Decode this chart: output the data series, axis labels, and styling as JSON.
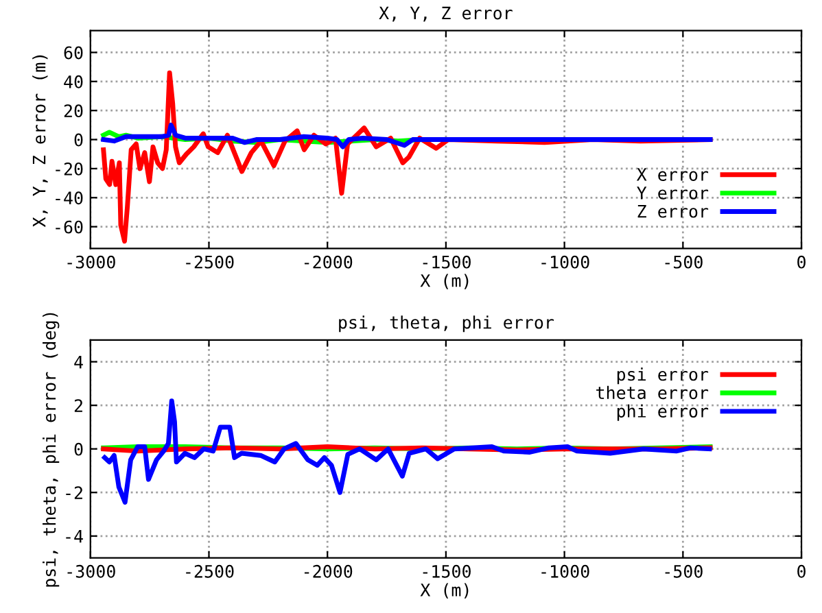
{
  "chart_data": [
    {
      "type": "line",
      "title": "X, Y, Z error",
      "xlabel": "X (m)",
      "ylabel": "X, Y, Z error (m)",
      "xlim": [
        -3000,
        0
      ],
      "xticks": [
        -3000,
        -2500,
        -2000,
        -1500,
        -1000,
        -500,
        0
      ],
      "ylim": [
        -75,
        75
      ],
      "yticks": [
        -60,
        -40,
        -20,
        0,
        20,
        40,
        60
      ],
      "grid": true,
      "legend": "bottom right",
      "line_style": "solid",
      "marker": "none",
      "series": [
        {
          "name": "X error",
          "color": "#ff0000",
          "x": [
            -2945,
            -2935,
            -2919,
            -2909,
            -2893,
            -2878,
            -2872,
            -2856,
            -2844,
            -2828,
            -2807,
            -2791,
            -2771,
            -2751,
            -2736,
            -2716,
            -2696,
            -2680,
            -2666,
            -2653,
            -2641,
            -2625,
            -2595,
            -2564,
            -2524,
            -2503,
            -2463,
            -2422,
            -2361,
            -2321,
            -2280,
            -2226,
            -2179,
            -2128,
            -2098,
            -2057,
            -2007,
            -1966,
            -1940,
            -1915,
            -1845,
            -1794,
            -1733,
            -1682,
            -1656,
            -1611,
            -1541,
            -1490,
            -1287,
            -1084,
            -881,
            -679,
            -385
          ],
          "values": [
            -7,
            -27,
            -31,
            -15,
            -31,
            -16,
            -59,
            -70,
            -46,
            -7,
            -3,
            -20,
            -9,
            -29,
            -5,
            -16,
            -20,
            -7,
            46,
            25,
            -5,
            -16,
            -10,
            -5,
            4,
            -5,
            -9,
            3,
            -22,
            -9,
            -1,
            -18,
            -1,
            6,
            -7,
            3,
            -3,
            1,
            -37,
            -3,
            8,
            -5,
            1,
            -16,
            -12,
            1,
            -6,
            0,
            -1,
            -2,
            0,
            -1,
            0
          ]
        },
        {
          "name": "Y error",
          "color": "#00ff00",
          "x": [
            -2945,
            -2920,
            -2880,
            -2850,
            -2800,
            -2700,
            -2600,
            -2500,
            -2400,
            -2300,
            -2200,
            -2100,
            -2000,
            -1900,
            -1800,
            -1700,
            -1600,
            -1500
          ],
          "values": [
            3,
            5,
            2,
            3,
            1,
            2,
            0,
            1,
            -1,
            -2,
            0,
            -1,
            -2,
            -1,
            0,
            -1,
            0,
            0
          ]
        },
        {
          "name": "Z error",
          "color": "#0000ff",
          "x": [
            -2945,
            -2900,
            -2850,
            -2800,
            -2700,
            -2670,
            -2660,
            -2640,
            -2600,
            -2500,
            -2400,
            -2350,
            -2300,
            -2200,
            -2100,
            -2000,
            -1960,
            -1935,
            -1910,
            -1850,
            -1750,
            -1675,
            -1640,
            -1500,
            -1300,
            -1000,
            -700,
            -385
          ],
          "values": [
            0,
            -1,
            2,
            2,
            2,
            3,
            10,
            3,
            1,
            1,
            1,
            -2,
            0,
            0,
            2,
            1,
            0,
            -5,
            0,
            1,
            0,
            -4,
            0,
            0,
            0,
            0,
            0,
            0
          ]
        }
      ]
    },
    {
      "type": "line",
      "title": "psi, theta, phi error",
      "xlabel": "X (m)",
      "ylabel": "psi, theta, phi error (deg)",
      "xlim": [
        -3000,
        0
      ],
      "xticks": [
        -3000,
        -2500,
        -2000,
        -1500,
        -1000,
        -500,
        0
      ],
      "ylim": [
        -5,
        5
      ],
      "yticks": [
        -4,
        -2,
        0,
        2,
        4
      ],
      "grid": true,
      "legend": "top right",
      "line_style": "solid",
      "marker": "none",
      "series": [
        {
          "name": "psi error",
          "color": "#ff0000",
          "x": [
            -2945,
            -2800,
            -2600,
            -2400,
            -2200,
            -2000,
            -1800,
            -1600,
            -1400,
            -1200,
            -1000,
            -800,
            -600,
            -385
          ],
          "values": [
            0,
            -0.1,
            0,
            0.05,
            0,
            0.1,
            0,
            0.05,
            0,
            -0.05,
            0,
            0,
            0,
            0.05
          ]
        },
        {
          "name": "theta error",
          "color": "#00ff00",
          "x": [
            -2945,
            -2800,
            -2600,
            -2400,
            -2200,
            -2000,
            -1800,
            -1600,
            -1400,
            -1200,
            -1000,
            -800,
            -600,
            -385
          ],
          "values": [
            0.05,
            0.1,
            0.1,
            0.05,
            0.05,
            0,
            0.05,
            0,
            0.05,
            0,
            0.05,
            0,
            0.05,
            0.1
          ]
        },
        {
          "name": "phi error",
          "color": "#0000ff",
          "x": [
            -2940,
            -2920,
            -2900,
            -2880,
            -2854,
            -2830,
            -2801,
            -2771,
            -2755,
            -2721,
            -2691,
            -2671,
            -2657,
            -2645,
            -2637,
            -2601,
            -2561,
            -2522,
            -2482,
            -2452,
            -2412,
            -2392,
            -2362,
            -2282,
            -2222,
            -2183,
            -2133,
            -2083,
            -2043,
            -2013,
            -1983,
            -1947,
            -1914,
            -1864,
            -1794,
            -1744,
            -1684,
            -1655,
            -1585,
            -1535,
            -1465,
            -1306,
            -1256,
            -1146,
            -1066,
            -987,
            -947,
            -807,
            -667,
            -528,
            -468,
            -388
          ],
          "values": [
            -0.4,
            -0.6,
            -0.3,
            -1.75,
            -2.45,
            -0.5,
            0.1,
            0.1,
            -1.4,
            -0.5,
            -0.1,
            0.25,
            2.2,
            1.25,
            -0.6,
            -0.2,
            -0.4,
            0,
            -0.1,
            1.0,
            1.0,
            -0.4,
            -0.2,
            -0.3,
            -0.6,
            0,
            0.25,
            -0.5,
            -0.75,
            -0.4,
            -0.75,
            -2.0,
            -0.25,
            0,
            -0.5,
            0,
            -1.25,
            -0.2,
            0,
            -0.45,
            0,
            0.1,
            -0.1,
            -0.15,
            0.05,
            0.1,
            -0.1,
            -0.2,
            0,
            -0.1,
            0.05,
            0
          ]
        }
      ]
    }
  ]
}
